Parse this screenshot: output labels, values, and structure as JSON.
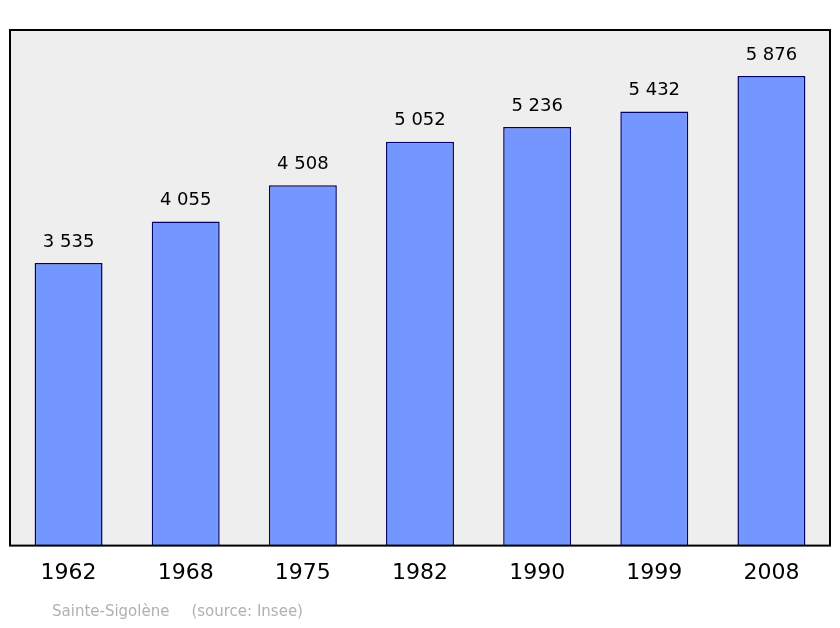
{
  "chart_data": {
    "type": "bar",
    "categories": [
      "1962",
      "1968",
      "1975",
      "1982",
      "1990",
      "1999",
      "2008"
    ],
    "values": [
      3535,
      4055,
      4508,
      5052,
      5236,
      5432,
      5876
    ],
    "value_labels": [
      "3 535",
      "4 055",
      "4 508",
      "5 052",
      "5 236",
      "5 432",
      "5 876"
    ],
    "data_labels": true,
    "color": "#7396ff",
    "ylim": [
      0,
      6450
    ],
    "grid": false,
    "tick_labels": "x",
    "annotations": [
      "Sainte-Sigolène",
      "(source: Insee)"
    ]
  }
}
